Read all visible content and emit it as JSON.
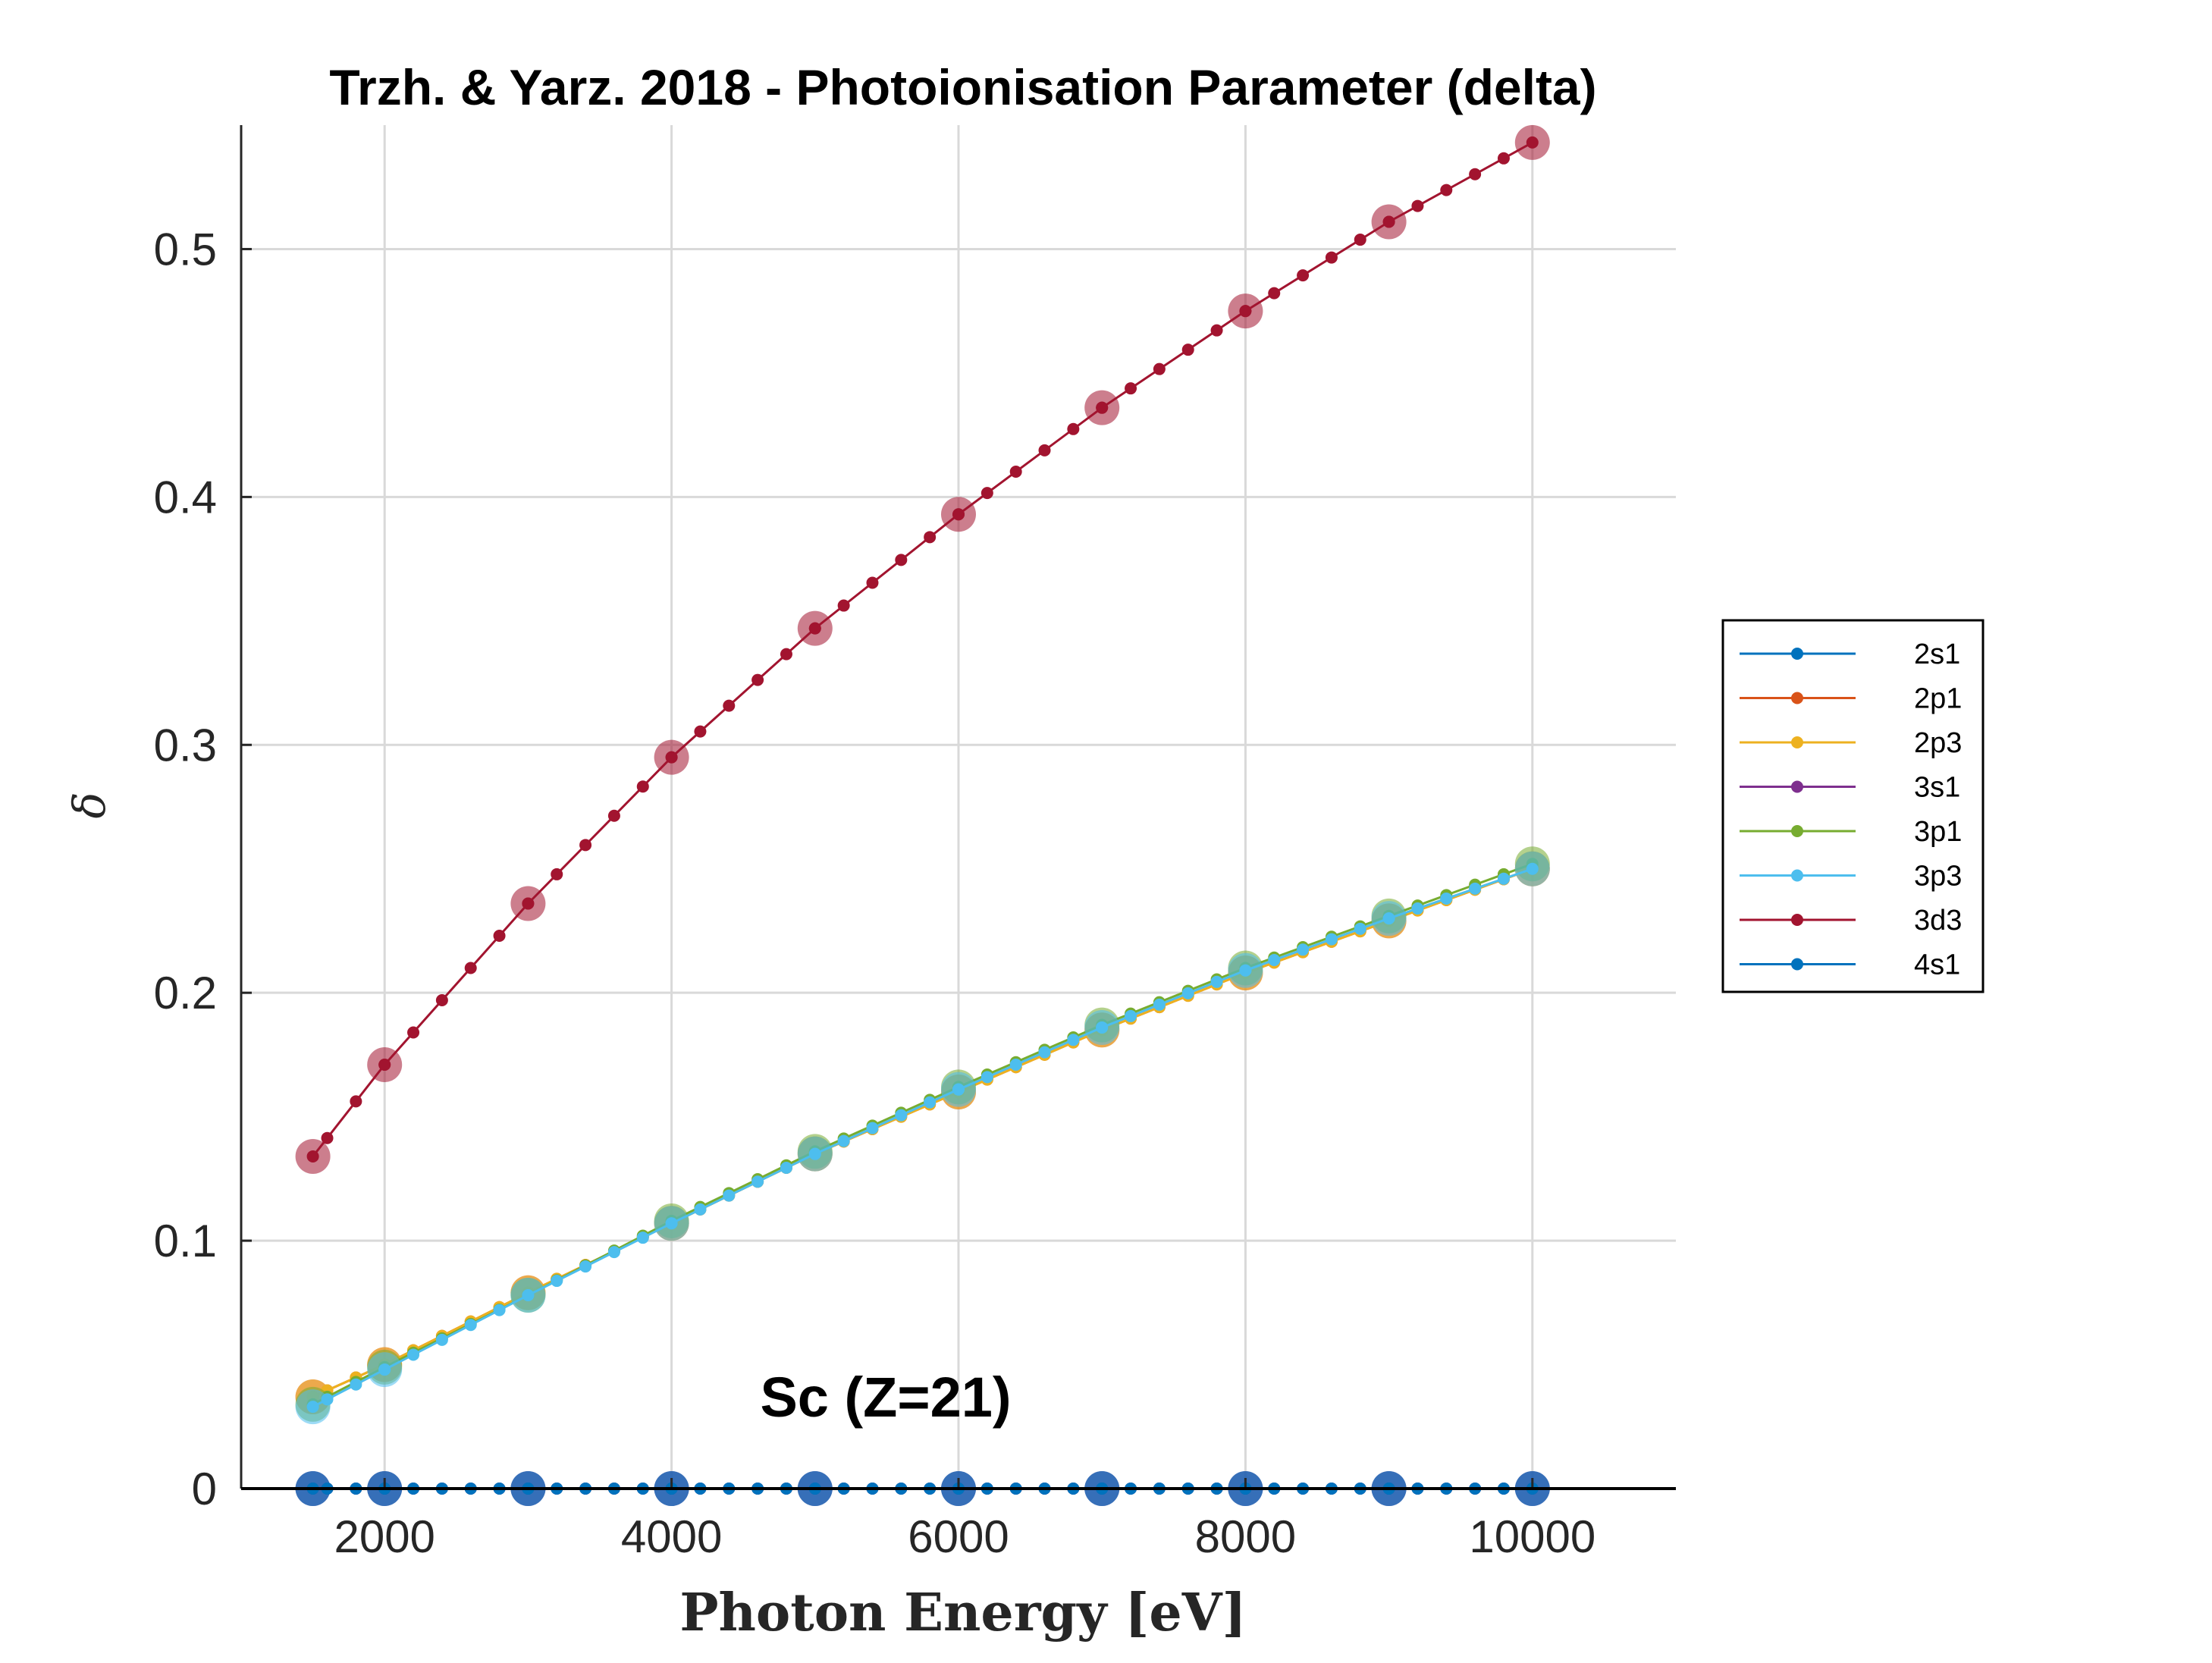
{
  "chart_data": {
    "type": "line",
    "title": "Trzh. & Yarz. 2018 - Photoionisation Parameter (delta)",
    "xlabel": "Photon Energy [eV]",
    "ylabel": "δ",
    "annotation": "Sc (Z=21)",
    "xlim": [
      1000,
      11000
    ],
    "ylim": [
      0,
      0.55
    ],
    "xticks": [
      2000,
      4000,
      6000,
      8000,
      10000
    ],
    "xtick_labels": [
      "2000",
      "4000",
      "6000",
      "8000",
      "10000"
    ],
    "yticks": [
      0,
      0.1,
      0.2,
      0.3,
      0.4,
      0.5
    ],
    "ytick_labels": [
      "0",
      "0.1",
      "0.2",
      "0.3",
      "0.4",
      "0.5"
    ],
    "grid": true,
    "legend_position": "outside-right",
    "x": [
      1500,
      2000,
      3000,
      4000,
      5000,
      6000,
      7000,
      8000,
      9000,
      10000
    ],
    "series": [
      {
        "name": "2s1",
        "color": "#0072BD",
        "values": [
          0,
          0,
          0,
          0,
          0,
          0,
          0,
          0,
          0,
          0
        ]
      },
      {
        "name": "2p1",
        "color": "#D95319",
        "values": [
          0.037,
          0.05,
          0.079,
          0.107,
          0.135,
          0.16,
          0.185,
          0.208,
          0.229,
          0.25
        ]
      },
      {
        "name": "2p3",
        "color": "#EDB120",
        "values": [
          0.037,
          0.05,
          0.079,
          0.107,
          0.135,
          0.16,
          0.185,
          0.208,
          0.229,
          0.25
        ]
      },
      {
        "name": "3s1",
        "color": "#7E2F8E",
        "values": [
          0,
          0,
          0,
          0,
          0,
          0,
          0,
          0,
          0,
          0
        ]
      },
      {
        "name": "3p1",
        "color": "#77AC30",
        "values": [
          0.034,
          0.049,
          0.078,
          0.108,
          0.136,
          0.162,
          0.187,
          0.21,
          0.231,
          0.252
        ]
      },
      {
        "name": "3p3",
        "color": "#4DBEEE",
        "values": [
          0.033,
          0.048,
          0.078,
          0.107,
          0.135,
          0.161,
          0.186,
          0.209,
          0.23,
          0.25
        ]
      },
      {
        "name": "3d3",
        "color": "#A2142F",
        "values": [
          0.134,
          0.171,
          0.236,
          0.295,
          0.347,
          0.393,
          0.436,
          0.475,
          0.511,
          0.543
        ]
      },
      {
        "name": "4s1",
        "color": "#0072BD",
        "values": [
          0,
          0,
          0,
          0,
          0,
          0,
          0,
          0,
          0,
          0
        ]
      }
    ]
  }
}
